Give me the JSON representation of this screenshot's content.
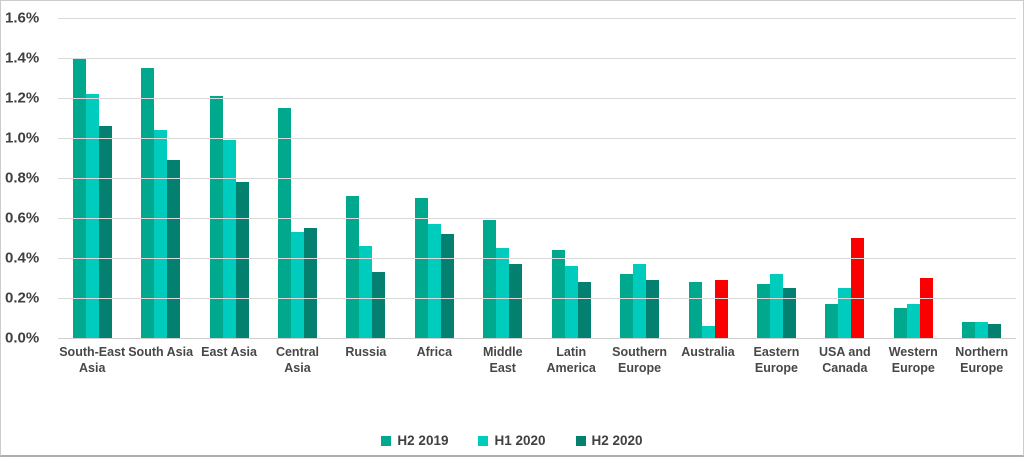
{
  "chart_data": {
    "type": "bar",
    "title": "",
    "xlabel": "",
    "ylabel": "",
    "categories": [
      "South-East Asia",
      "South Asia",
      "East Asia",
      "Central Asia",
      "Russia",
      "Africa",
      "Middle East",
      "Latin America",
      "Southern Europe",
      "Australia",
      "Eastern Europe",
      "USA and Canada",
      "Western Europe",
      "Northern Europe"
    ],
    "series": [
      {
        "name": "H2 2019",
        "color": "#00A88E",
        "values": [
          1.4,
          1.35,
          1.21,
          1.15,
          0.71,
          0.7,
          0.59,
          0.44,
          0.32,
          0.28,
          0.27,
          0.17,
          0.15,
          0.08
        ]
      },
      {
        "name": "H1 2020",
        "color": "#00CCBE",
        "values": [
          1.22,
          1.04,
          0.99,
          0.53,
          0.46,
          0.57,
          0.45,
          0.36,
          0.37,
          0.06,
          0.32,
          0.25,
          0.17,
          0.08
        ]
      },
      {
        "name": "H2 2020",
        "color": "#03806F",
        "values": [
          1.06,
          0.89,
          0.78,
          0.55,
          0.33,
          0.52,
          0.37,
          0.28,
          0.29,
          0.29,
          0.25,
          0.5,
          0.3,
          0.07
        ],
        "highlight_indices": [
          9,
          11,
          12
        ],
        "highlight_color": "#FB0000"
      }
    ],
    "value_unit": "%",
    "ylim": [
      0,
      1.6
    ],
    "ytick_step": 0.2,
    "ytick_labels": [
      "0.0%",
      "0.2%",
      "0.4%",
      "0.6%",
      "0.8%",
      "1.0%",
      "1.2%",
      "1.4%",
      "1.6%"
    ],
    "grid": true,
    "gridline_color": "#DADADA",
    "axis_text_color": "#404040",
    "legend_position": "bottom"
  }
}
